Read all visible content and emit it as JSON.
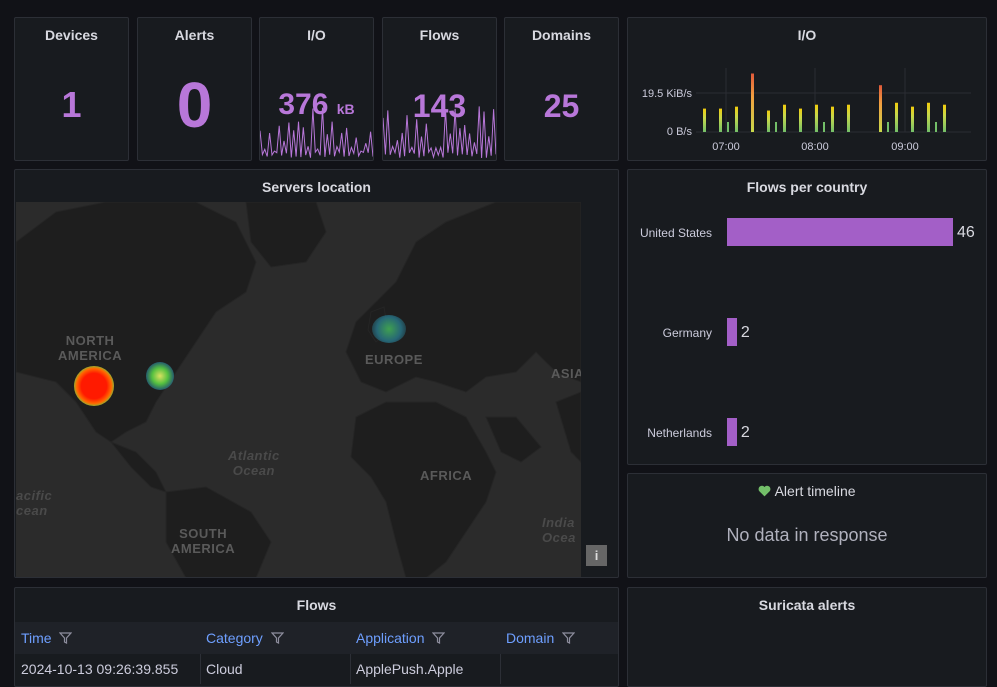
{
  "stats": {
    "devices": {
      "title": "Devices",
      "value": "1"
    },
    "alerts": {
      "title": "Alerts",
      "value": "0"
    },
    "io": {
      "title": "I/O",
      "value": "376",
      "unit": "kB"
    },
    "flows": {
      "title": "Flows",
      "value": "143"
    },
    "domains": {
      "title": "Domains",
      "value": "25"
    }
  },
  "io_chart": {
    "title": "I/O",
    "chart_data": {
      "type": "bar",
      "yticks": [
        "19.5 KiB/s",
        "0 B/s"
      ],
      "xticks": [
        "07:00",
        "08:00",
        "09:00"
      ],
      "series_color": "#c8d94a",
      "peak_color": "#e05a3a"
    }
  },
  "map": {
    "title": "Servers location",
    "labels": {
      "north_america": "NORTH\nAMERICA",
      "europe": "EUROPE",
      "asia": "ASIA",
      "atlantic": "Atlantic\nOcean",
      "africa": "AFRICA",
      "pacific": "acific\ncean",
      "south_america": "SOUTH\nAMERICA",
      "indian": "India\nOcea"
    },
    "info_button": "i"
  },
  "flows_per_country": {
    "title": "Flows per country",
    "chart_data": {
      "type": "bar",
      "categories": [
        "United States",
        "Germany",
        "Netherlands"
      ],
      "values": [
        46,
        2,
        2
      ],
      "orientation": "horizontal",
      "color": "#a35fc7"
    }
  },
  "alert_timeline": {
    "title": "Alert timeline",
    "message": "No data in response"
  },
  "flows_table": {
    "title": "Flows",
    "columns": [
      "Time",
      "Category",
      "Application",
      "Domain"
    ],
    "rows": [
      [
        "2024-10-13 09:26:39.855",
        "Cloud",
        "ApplePush.Apple",
        ""
      ]
    ]
  },
  "suricata": {
    "title": "Suricata alerts"
  }
}
